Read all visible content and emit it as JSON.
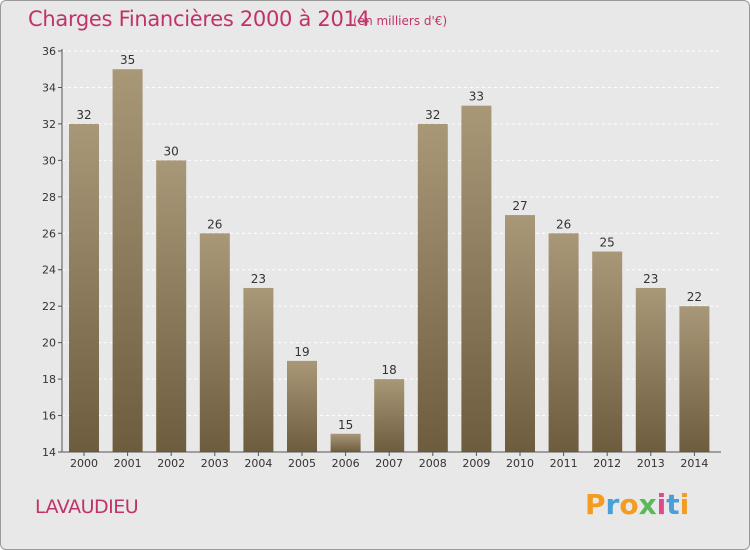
{
  "header": {
    "title": "Charges Financières 2000 à 2014",
    "subtitle": "(en milliers d'€)"
  },
  "footer": {
    "commune": "LAVAUDIEU",
    "logo_letters": [
      "P",
      "r",
      "o",
      "x",
      "i",
      "t",
      "i"
    ],
    "logo_colors": [
      "#f39c1f",
      "#4a9fd8",
      "#f39c1f",
      "#5cb85c",
      "#e04a8c",
      "#4a9fd8",
      "#f39c1f"
    ]
  },
  "colors": {
    "bar_top": "#a89878",
    "bar_bottom": "#6e5c3e",
    "axis": "#555555",
    "grid": "#ffffff",
    "accent": "#c0336a"
  },
  "chart_data": {
    "type": "bar",
    "title": "Charges Financières 2000 à 2014",
    "subtitle": "(en milliers d'€)",
    "categories": [
      "2000",
      "2001",
      "2002",
      "2003",
      "2004",
      "2005",
      "2006",
      "2007",
      "2008",
      "2009",
      "2010",
      "2011",
      "2012",
      "2013",
      "2014"
    ],
    "values": [
      32,
      35,
      30,
      26,
      23,
      19,
      15,
      18,
      32,
      33,
      27,
      26,
      25,
      23,
      22
    ],
    "ylim": [
      14,
      36
    ],
    "yticks": [
      14,
      16,
      18,
      20,
      22,
      24,
      26,
      28,
      30,
      32,
      34,
      36
    ],
    "grid": true,
    "legend": "none",
    "xlabel": "",
    "ylabel": ""
  }
}
